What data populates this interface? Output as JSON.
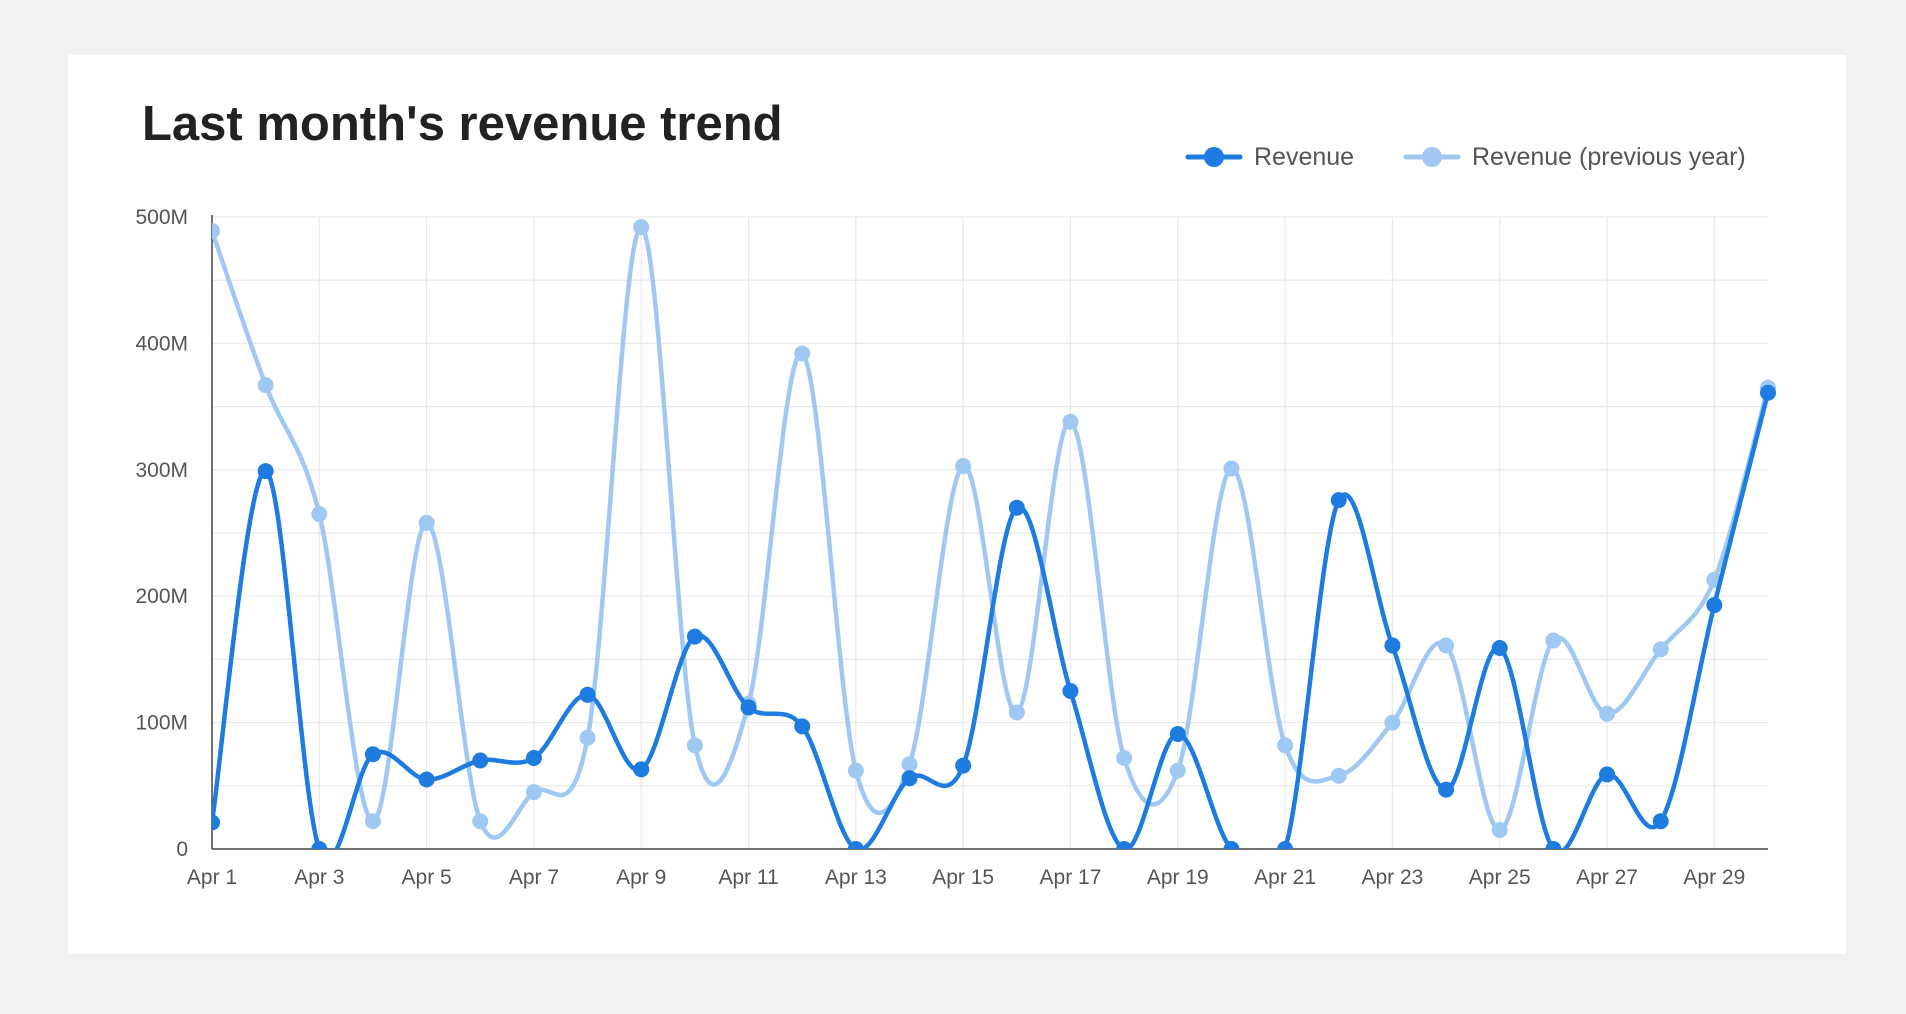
{
  "chart_data": {
    "type": "line",
    "title": "Last month's revenue trend",
    "xlabel": "",
    "ylabel": "",
    "x": [
      "Apr 1",
      "Apr 2",
      "Apr 3",
      "Apr 4",
      "Apr 5",
      "Apr 6",
      "Apr 7",
      "Apr 8",
      "Apr 9",
      "Apr 10",
      "Apr 11",
      "Apr 12",
      "Apr 13",
      "Apr 14",
      "Apr 15",
      "Apr 16",
      "Apr 17",
      "Apr 18",
      "Apr 19",
      "Apr 20",
      "Apr 21",
      "Apr 22",
      "Apr 23",
      "Apr 24",
      "Apr 25",
      "Apr 26",
      "Apr 27",
      "Apr 28",
      "Apr 29",
      "Apr 30"
    ],
    "x_tick_labels": [
      "Apr 1",
      "Apr 3",
      "Apr 5",
      "Apr 7",
      "Apr 9",
      "Apr 11",
      "Apr 13",
      "Apr 15",
      "Apr 17",
      "Apr 19",
      "Apr 21",
      "Apr 23",
      "Apr 25",
      "Apr 27",
      "Apr 29"
    ],
    "y_ticks": [
      0,
      100000000,
      200000000,
      300000000,
      400000000,
      500000000
    ],
    "y_tick_labels": [
      "0",
      "100M",
      "200M",
      "300M",
      "400M",
      "500M"
    ],
    "ylim": [
      0,
      500000000
    ],
    "grid": true,
    "legend_position": "top-right",
    "series": [
      {
        "name": "Revenue",
        "color": "#1e7be0",
        "values": [
          21000000,
          299000000,
          0,
          75000000,
          55000000,
          70000000,
          72000000,
          122000000,
          63000000,
          168000000,
          112000000,
          97000000,
          0,
          56000000,
          66000000,
          270000000,
          125000000,
          0,
          91000000,
          0,
          0,
          276000000,
          161000000,
          47000000,
          159000000,
          0,
          59000000,
          22000000,
          193000000,
          361000000
        ]
      },
      {
        "name": "Revenue (previous year)",
        "color": "#9fc8f2",
        "values": [
          489000000,
          367000000,
          265000000,
          22000000,
          258000000,
          22000000,
          45000000,
          88000000,
          492000000,
          82000000,
          115000000,
          392000000,
          62000000,
          67000000,
          303000000,
          108000000,
          338000000,
          72000000,
          62000000,
          301000000,
          82000000,
          58000000,
          100000000,
          161000000,
          15000000,
          165000000,
          107000000,
          158000000,
          213000000,
          365000000
        ]
      }
    ]
  }
}
